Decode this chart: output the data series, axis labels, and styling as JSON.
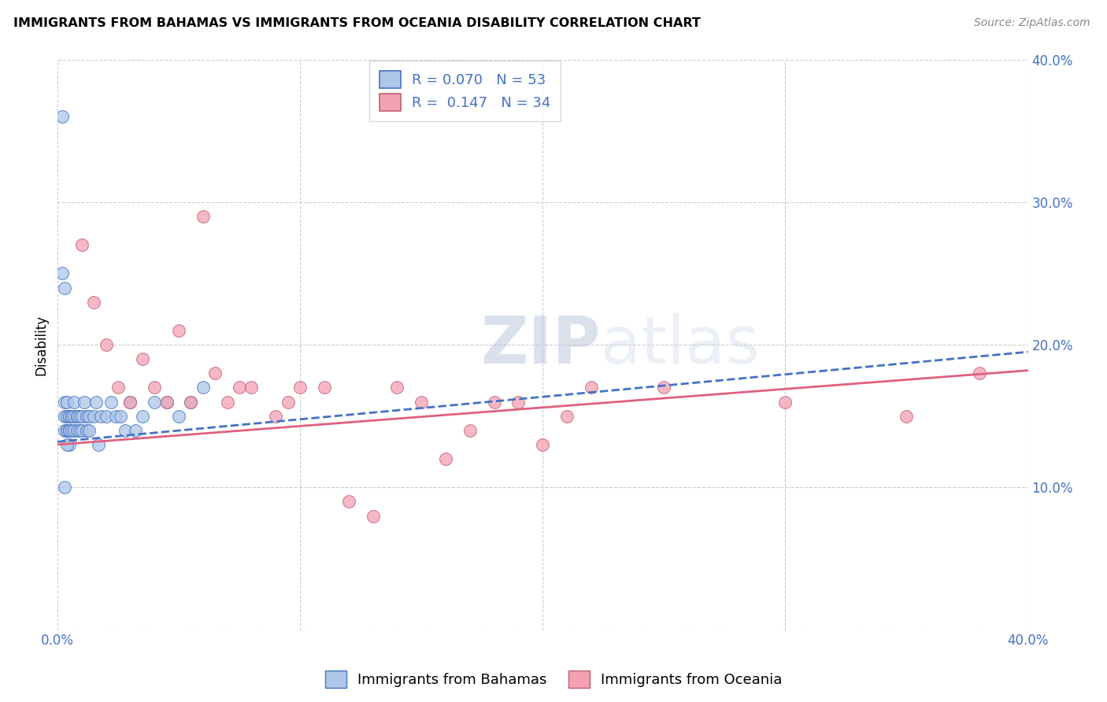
{
  "title": "IMMIGRANTS FROM BAHAMAS VS IMMIGRANTS FROM OCEANIA DISABILITY CORRELATION CHART",
  "source": "Source: ZipAtlas.com",
  "ylabel": "Disability",
  "xlim": [
    0.0,
    0.4
  ],
  "ylim": [
    0.0,
    0.4
  ],
  "grid_color": "#cccccc",
  "background_color": "#ffffff",
  "watermark": "ZIPatlas",
  "series1_label": "Immigrants from Bahamas",
  "series1_color": "#aec6e8",
  "series1_R": "0.070",
  "series1_N": "53",
  "series1_line_color": "#4472C4",
  "series2_label": "Immigrants from Oceania",
  "series2_color": "#f4a0b5",
  "series2_R": "0.147",
  "series2_N": "34",
  "series2_line_color": "#e06080",
  "series1_x": [
    0.002,
    0.002,
    0.003,
    0.003,
    0.003,
    0.003,
    0.004,
    0.004,
    0.004,
    0.004,
    0.005,
    0.005,
    0.005,
    0.005,
    0.005,
    0.005,
    0.006,
    0.006,
    0.006,
    0.007,
    0.007,
    0.007,
    0.008,
    0.008,
    0.008,
    0.009,
    0.009,
    0.01,
    0.01,
    0.011,
    0.012,
    0.012,
    0.013,
    0.013,
    0.015,
    0.016,
    0.017,
    0.018,
    0.02,
    0.022,
    0.024,
    0.026,
    0.028,
    0.03,
    0.032,
    0.035,
    0.04,
    0.045,
    0.05,
    0.055,
    0.06,
    0.003,
    0.004
  ],
  "series1_y": [
    0.36,
    0.25,
    0.24,
    0.16,
    0.15,
    0.14,
    0.15,
    0.16,
    0.14,
    0.14,
    0.14,
    0.14,
    0.15,
    0.15,
    0.14,
    0.13,
    0.15,
    0.15,
    0.14,
    0.14,
    0.15,
    0.16,
    0.15,
    0.15,
    0.14,
    0.15,
    0.14,
    0.15,
    0.14,
    0.16,
    0.14,
    0.15,
    0.14,
    0.15,
    0.15,
    0.16,
    0.13,
    0.15,
    0.15,
    0.16,
    0.15,
    0.15,
    0.14,
    0.16,
    0.14,
    0.15,
    0.16,
    0.16,
    0.15,
    0.16,
    0.17,
    0.1,
    0.13
  ],
  "series2_x": [
    0.01,
    0.015,
    0.02,
    0.025,
    0.03,
    0.035,
    0.04,
    0.045,
    0.05,
    0.055,
    0.06,
    0.065,
    0.07,
    0.075,
    0.08,
    0.09,
    0.095,
    0.1,
    0.11,
    0.12,
    0.13,
    0.14,
    0.15,
    0.16,
    0.17,
    0.18,
    0.19,
    0.2,
    0.21,
    0.22,
    0.25,
    0.3,
    0.35,
    0.38
  ],
  "series2_y": [
    0.27,
    0.23,
    0.2,
    0.17,
    0.16,
    0.19,
    0.17,
    0.16,
    0.21,
    0.16,
    0.29,
    0.18,
    0.16,
    0.17,
    0.17,
    0.15,
    0.16,
    0.17,
    0.17,
    0.09,
    0.08,
    0.17,
    0.16,
    0.12,
    0.14,
    0.16,
    0.16,
    0.13,
    0.15,
    0.17,
    0.17,
    0.16,
    0.15,
    0.18
  ]
}
